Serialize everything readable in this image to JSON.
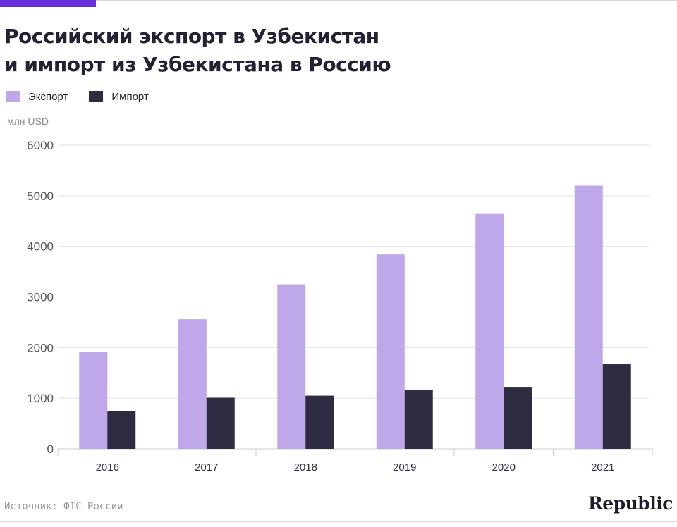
{
  "header": {
    "title_line1": "Российский экспорт в Узбекистан",
    "title_line2": "и импорт из Узбекистана в Россию"
  },
  "colors": {
    "accent": "#6a2fd6",
    "export": "#bea8ea",
    "import": "#2e2c40",
    "grid": "#e2e2e2",
    "axis_text": "#555555"
  },
  "chart_data": {
    "type": "bar",
    "title": "Российский экспорт в Узбекистан и импорт из Узбекистана в Россию",
    "ylabel": "млн USD",
    "xlabel": "",
    "categories": [
      "2016",
      "2017",
      "2018",
      "2019",
      "2020",
      "2021"
    ],
    "series": [
      {
        "name": "Экспорт",
        "values": [
          1920,
          2560,
          3250,
          3840,
          4640,
          5200
        ]
      },
      {
        "name": "Импорт",
        "values": [
          750,
          1010,
          1050,
          1170,
          1210,
          1670
        ]
      }
    ],
    "ylim": [
      0,
      6000
    ],
    "yticks": [
      "0",
      "1000",
      "2000",
      "3000",
      "4000",
      "5000",
      "6000"
    ],
    "grid": true,
    "legend": "top-left"
  },
  "footer": {
    "source": "Источник: ФТС России",
    "logo": "Republic"
  }
}
